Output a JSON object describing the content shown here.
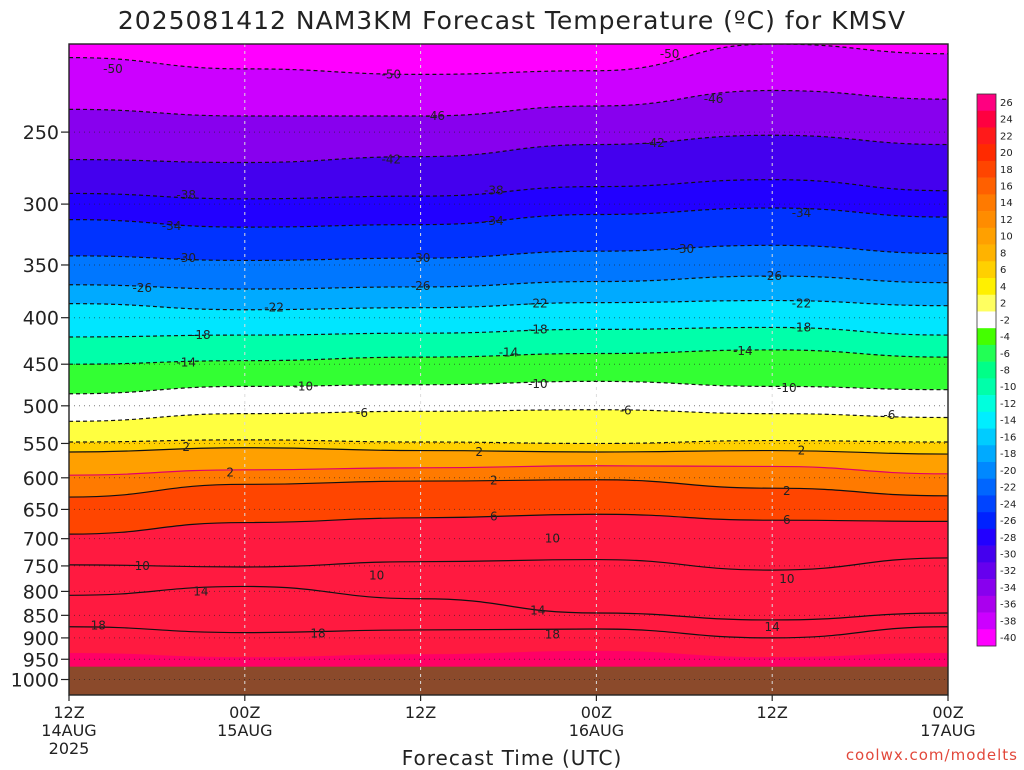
{
  "chart_data": {
    "type": "heatmap",
    "title": "2025081412 NAM3KM Forecast Temperature (ºC) for KMSV",
    "xlabel": "Forecast Time (UTC)",
    "ylabel": "",
    "x_ticks": [
      {
        "hour": 0,
        "label": "12Z",
        "date": "14AUG",
        "year": "2025"
      },
      {
        "hour": 12,
        "label": "00Z",
        "date": "15AUG"
      },
      {
        "hour": 24,
        "label": "12Z",
        "date": ""
      },
      {
        "hour": 36,
        "label": "00Z",
        "date": "16AUG"
      },
      {
        "hour": 48,
        "label": "12Z",
        "date": ""
      },
      {
        "hour": 60,
        "label": "00Z",
        "date": "17AUG"
      }
    ],
    "xlim": [
      0,
      60
    ],
    "y_ticks": [
      250,
      300,
      350,
      400,
      450,
      500,
      550,
      600,
      650,
      700,
      750,
      800,
      850,
      900,
      950,
      1000
    ],
    "ylim": [
      200,
      1040
    ],
    "y_scale": "log-pressure",
    "colorbar_levels": [
      26,
      24,
      22,
      20,
      18,
      16,
      14,
      12,
      10,
      8,
      6,
      4,
      2,
      -2,
      -4,
      -6,
      -8,
      -10,
      -12,
      -14,
      -16,
      -18,
      -20,
      -22,
      -24,
      -26,
      -28,
      -30,
      -32,
      -34,
      -36,
      -38,
      -40
    ],
    "colorbar_colors": [
      "#ff0080",
      "#ff0040",
      "#ff1a1a",
      "#ff2a00",
      "#ff4500",
      "#ff6000",
      "#ff7a00",
      "#ff8c00",
      "#ffa000",
      "#ffb300",
      "#ffd000",
      "#fff000",
      "#ffff60",
      "#ffffff",
      "#44ff00",
      "#22ff55",
      "#00ff88",
      "#00ffaa",
      "#00ffdd",
      "#00eeff",
      "#00ccff",
      "#00aaff",
      "#0088ff",
      "#0066ff",
      "#0044ff",
      "#0022ff",
      "#2200ff",
      "#4400ee",
      "#6600ee",
      "#8800ee",
      "#aa00ee",
      "#cc00ff",
      "#ff00ff"
    ],
    "surface_color": "#8b4a2b",
    "grid": true,
    "contours": [
      {
        "level": -50,
        "p": [
          207,
          213,
          216,
          214,
          200,
          205
        ]
      },
      {
        "level": -46,
        "p": [
          236,
          240,
          240,
          234,
          225,
          230
        ]
      },
      {
        "level": -42,
        "p": [
          268,
          270,
          266,
          258,
          252,
          258
        ]
      },
      {
        "level": -38,
        "p": [
          292,
          296,
          294,
          287,
          282,
          290
        ]
      },
      {
        "level": -34,
        "p": [
          312,
          318,
          316,
          308,
          303,
          310
        ]
      },
      {
        "level": -30,
        "p": [
          342,
          346,
          344,
          338,
          333,
          340
        ]
      },
      {
        "level": -26,
        "p": [
          368,
          372,
          370,
          365,
          360,
          366
        ]
      },
      {
        "level": -22,
        "p": [
          386,
          392,
          390,
          385,
          383,
          388
        ]
      },
      {
        "level": -18,
        "p": [
          420,
          418,
          416,
          412,
          410,
          418
        ]
      },
      {
        "level": -14,
        "p": [
          450,
          446,
          442,
          438,
          434,
          442
        ]
      },
      {
        "level": -10,
        "p": [
          485,
          476,
          474,
          470,
          476,
          480
        ]
      },
      {
        "level": -6,
        "p": [
          520,
          510,
          507,
          505,
          510,
          515
        ]
      },
      {
        "level": -2,
        "p": [
          548,
          545,
          548,
          550,
          546,
          548
        ]
      },
      {
        "level": 2,
        "p": [
          562,
          556,
          560,
          562,
          560,
          565
        ]
      },
      {
        "level": 0,
        "p": [
          596,
          588,
          585,
          582,
          583,
          594
        ]
      },
      {
        "level": 2,
        "p": [
          630,
          610,
          605,
          603,
          616,
          628
        ]
      },
      {
        "level": 6,
        "p": [
          692,
          672,
          664,
          658,
          668,
          670
        ]
      },
      {
        "level": 10,
        "p": [
          748,
          752,
          742,
          738,
          758,
          735
        ]
      },
      {
        "level": 14,
        "p": [
          808,
          790,
          815,
          845,
          860,
          845
        ]
      },
      {
        "level": 18,
        "p": [
          875,
          888,
          882,
          880,
          900,
          875
        ]
      }
    ],
    "contour_labels": [
      {
        "hour": 3,
        "p": 213,
        "text": "-50"
      },
      {
        "hour": 22,
        "p": 216,
        "text": "-50"
      },
      {
        "hour": 41,
        "p": 205,
        "text": "-50"
      },
      {
        "hour": 25,
        "p": 240,
        "text": "-46"
      },
      {
        "hour": 44,
        "p": 230,
        "text": "-46"
      },
      {
        "hour": 22,
        "p": 268,
        "text": "-42"
      },
      {
        "hour": 40,
        "p": 257,
        "text": "-42"
      },
      {
        "hour": 8,
        "p": 293,
        "text": "-38"
      },
      {
        "hour": 29,
        "p": 290,
        "text": "-38"
      },
      {
        "hour": 7,
        "p": 317,
        "text": "-34"
      },
      {
        "hour": 29,
        "p": 313,
        "text": "-34"
      },
      {
        "hour": 50,
        "p": 307,
        "text": "-34"
      },
      {
        "hour": 8,
        "p": 344,
        "text": "-30"
      },
      {
        "hour": 24,
        "p": 344,
        "text": "-30"
      },
      {
        "hour": 42,
        "p": 336,
        "text": "-30"
      },
      {
        "hour": 5,
        "p": 371,
        "text": "-26"
      },
      {
        "hour": 24,
        "p": 369,
        "text": "-26"
      },
      {
        "hour": 48,
        "p": 360,
        "text": "-26"
      },
      {
        "hour": 14,
        "p": 390,
        "text": "-22"
      },
      {
        "hour": 32,
        "p": 386,
        "text": "-22"
      },
      {
        "hour": 50,
        "p": 386,
        "text": "-22"
      },
      {
        "hour": 9,
        "p": 418,
        "text": "-18"
      },
      {
        "hour": 32,
        "p": 412,
        "text": "-18"
      },
      {
        "hour": 50,
        "p": 410,
        "text": "-18"
      },
      {
        "hour": 8,
        "p": 448,
        "text": "-14"
      },
      {
        "hour": 30,
        "p": 437,
        "text": "-14"
      },
      {
        "hour": 46,
        "p": 435,
        "text": "-14"
      },
      {
        "hour": 16,
        "p": 476,
        "text": "-10"
      },
      {
        "hour": 32,
        "p": 473,
        "text": "-10"
      },
      {
        "hour": 49,
        "p": 478,
        "text": "-10"
      },
      {
        "hour": 20,
        "p": 509,
        "text": "-6"
      },
      {
        "hour": 38,
        "p": 506,
        "text": "-6"
      },
      {
        "hour": 56,
        "p": 512,
        "text": "-6"
      },
      {
        "hour": 8,
        "p": 555,
        "text": "2"
      },
      {
        "hour": 28,
        "p": 562,
        "text": "2"
      },
      {
        "hour": 50,
        "p": 560,
        "text": "2"
      },
      {
        "hour": 11,
        "p": 592,
        "text": "2"
      },
      {
        "hour": 29,
        "p": 604,
        "text": "2"
      },
      {
        "hour": 49,
        "p": 620,
        "text": "2"
      },
      {
        "hour": 29,
        "p": 662,
        "text": "6"
      },
      {
        "hour": 49,
        "p": 668,
        "text": "6"
      },
      {
        "hour": 5,
        "p": 750,
        "text": "10"
      },
      {
        "hour": 21,
        "p": 768,
        "text": "10"
      },
      {
        "hour": 33,
        "p": 700,
        "text": "10"
      },
      {
        "hour": 49,
        "p": 775,
        "text": "10"
      },
      {
        "hour": 9,
        "p": 800,
        "text": "14"
      },
      {
        "hour": 32,
        "p": 840,
        "text": "14"
      },
      {
        "hour": 48,
        "p": 875,
        "text": "14"
      },
      {
        "hour": 2,
        "p": 872,
        "text": "18"
      },
      {
        "hour": 17,
        "p": 890,
        "text": "18"
      },
      {
        "hour": 33,
        "p": 892,
        "text": "18"
      }
    ]
  },
  "watermark": "coolwx.com/modelts"
}
